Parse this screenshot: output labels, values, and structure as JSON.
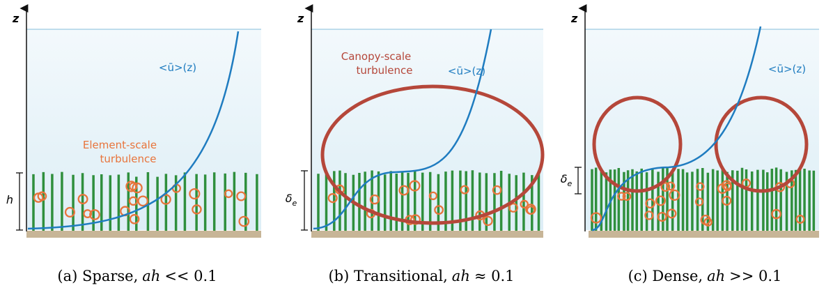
{
  "panels": [
    {
      "axis_label": "z",
      "profile_label": "<ū>(z)",
      "turbulence_label": [
        "Element-scale",
        "turbulence"
      ],
      "height_label": {
        "symbol": "h"
      },
      "caption": {
        "text": "(a) Sparse,",
        "var": "ah",
        "rel": "<< 0.1"
      }
    },
    {
      "axis_label": "z",
      "profile_label": "<ū>(z)",
      "turbulence_label": [
        "Canopy-scale",
        "turbulence"
      ],
      "height_label": {
        "symbol": "δ",
        "subscript": "e"
      },
      "caption": {
        "text": "(b) Transitional,",
        "var": "ah",
        "rel": "≈ 0.1"
      }
    },
    {
      "axis_label": "z",
      "profile_label": "<ū>(z)",
      "height_label": {
        "symbol": "δ",
        "subscript": "e"
      },
      "caption": {
        "text": "(c) Dense,",
        "var": "ah",
        "rel": ">> 0.1"
      }
    }
  ]
}
